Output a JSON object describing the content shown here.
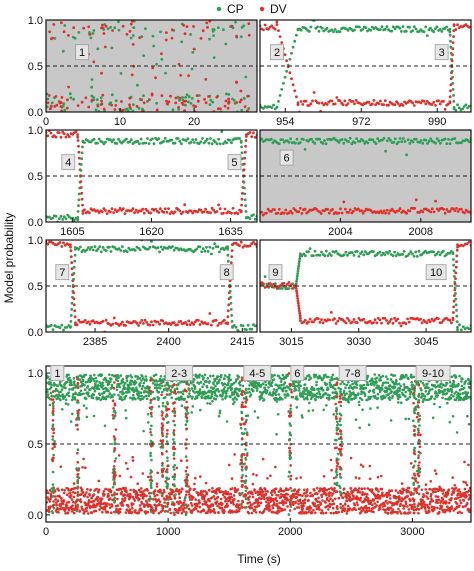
{
  "legend": {
    "position": "top-center",
    "entries": [
      {
        "label": "CP",
        "color": "#2e9e55"
      },
      {
        "label": "DV",
        "color": "#e0302a"
      }
    ]
  },
  "y_axis_label": "Model probability",
  "x_axis_label": "Time (s)",
  "colors": {
    "cp": "#2e9e55",
    "dv": "#e0302a",
    "shade": "#c8c8c8"
  },
  "chart_data": [
    {
      "type": "scatter",
      "panel": "top-left",
      "xlim": [
        0,
        28.5
      ],
      "ylim": [
        0,
        1
      ],
      "x_ticks": [
        0,
        10,
        20
      ],
      "y_ticks": [
        0.0,
        0.5,
        1.0
      ],
      "y_tick_labels": [
        "0.0",
        "0.5",
        "1.0"
      ],
      "reference_line": 0.5,
      "shaded": true,
      "badges": [
        {
          "label": "1",
          "x": 4,
          "y": 0.65
        }
      ],
      "series": [
        {
          "color": "cp",
          "segments": [],
          "noise": {
            "from": 0,
            "to": 27.5,
            "count": 140
          }
        },
        {
          "color": "dv",
          "segments": [],
          "noise": {
            "from": 0,
            "to": 27.5,
            "count": 140
          }
        }
      ]
    },
    {
      "type": "scatter",
      "panel": "top-right",
      "xlim": [
        948,
        998
      ],
      "ylim": [
        0,
        1
      ],
      "x_ticks": [
        954,
        972,
        990
      ],
      "y_ticks": [
        0.0,
        0.5,
        1.0
      ],
      "reference_line": 0.5,
      "shaded": false,
      "badges": [
        {
          "label": "2",
          "x": 950.5,
          "y": 0.65
        },
        {
          "label": "3",
          "x": 989.5,
          "y": 0.65
        }
      ],
      "series": [
        {
          "color": "cp",
          "segments": [
            {
              "from": 948,
              "to": 952,
              "level": 0.05
            },
            {
              "from": 957,
              "to": 993,
              "level": 0.9
            },
            {
              "from": 994,
              "to": 998,
              "level": 0.05
            }
          ]
        },
        {
          "color": "dv",
          "segments": [
            {
              "from": 948,
              "to": 952,
              "level": 0.92
            },
            {
              "from": 957,
              "to": 993,
              "level": 0.1
            },
            {
              "from": 994,
              "to": 998,
              "level": 0.92
            }
          ]
        }
      ]
    },
    {
      "type": "scatter",
      "panel": "middle-left",
      "xlim": [
        1600,
        1640
      ],
      "ylim": [
        0,
        1
      ],
      "x_ticks": [
        1605,
        1620,
        1635
      ],
      "y_ticks": [
        0.0,
        0.5,
        1.0
      ],
      "reference_line": 0.5,
      "shaded": false,
      "badges": [
        {
          "label": "4",
          "x": 1603,
          "y": 0.65
        },
        {
          "label": "5",
          "x": 1634.5,
          "y": 0.65
        }
      ],
      "series": [
        {
          "color": "cp",
          "segments": [
            {
              "from": 1600,
              "to": 1606,
              "level": 0.05
            },
            {
              "from": 1607,
              "to": 1637,
              "level": 0.88
            },
            {
              "from": 1638,
              "to": 1640,
              "level": 0.05
            }
          ]
        },
        {
          "color": "dv",
          "segments": [
            {
              "from": 1600,
              "to": 1606,
              "level": 0.95
            },
            {
              "from": 1607,
              "to": 1637,
              "level": 0.12
            },
            {
              "from": 1638,
              "to": 1640,
              "level": 0.95
            }
          ]
        }
      ]
    },
    {
      "type": "scatter",
      "panel": "middle-right",
      "xlim": [
        2000,
        2010.5
      ],
      "ylim": [
        0,
        1
      ],
      "x_ticks": [
        2004,
        2008
      ],
      "y_ticks": [
        0.0,
        0.5,
        1.0
      ],
      "reference_line": 0.5,
      "shaded": true,
      "badges": [
        {
          "label": "6",
          "x": 2001,
          "y": 0.7
        }
      ],
      "series": [
        {
          "color": "cp",
          "segments": [
            {
              "from": 2000,
              "to": 2010.5,
              "level": 0.88
            }
          ]
        },
        {
          "color": "dv",
          "segments": [
            {
              "from": 2000,
              "to": 2010.5,
              "level": 0.12
            }
          ]
        }
      ]
    },
    {
      "type": "scatter",
      "panel": "lower-left",
      "xlim": [
        2375,
        2418
      ],
      "ylim": [
        0,
        1
      ],
      "x_ticks": [
        2385,
        2400,
        2415
      ],
      "y_ticks": [
        0.0,
        0.5,
        1.0
      ],
      "reference_line": 0.5,
      "shaded": false,
      "badges": [
        {
          "label": "7",
          "x": 2377,
          "y": 0.65
        },
        {
          "label": "8",
          "x": 2410.5,
          "y": 0.65
        }
      ],
      "series": [
        {
          "color": "cp",
          "segments": [
            {
              "from": 2375,
              "to": 2380,
              "level": 0.05
            },
            {
              "from": 2381,
              "to": 2412,
              "level": 0.9
            },
            {
              "from": 2413,
              "to": 2418,
              "level": 0.05
            }
          ]
        },
        {
          "color": "dv",
          "segments": [
            {
              "from": 2375,
              "to": 2380,
              "level": 0.95
            },
            {
              "from": 2381,
              "to": 2412,
              "level": 0.1
            },
            {
              "from": 2413,
              "to": 2418,
              "level": 0.95
            }
          ]
        }
      ]
    },
    {
      "type": "scatter",
      "panel": "lower-right",
      "xlim": [
        3008,
        3055
      ],
      "ylim": [
        0,
        1
      ],
      "x_ticks": [
        3015,
        3030,
        3045
      ],
      "y_ticks": [
        0.0,
        0.5,
        1.0
      ],
      "reference_line": 0.5,
      "shaded": false,
      "badges": [
        {
          "label": "9",
          "x": 3010,
          "y": 0.65
        },
        {
          "label": "10",
          "x": 3045,
          "y": 0.65
        }
      ],
      "series": [
        {
          "color": "cp",
          "segments": [
            {
              "from": 3008,
              "to": 3016,
              "level": 0.5
            },
            {
              "from": 3017,
              "to": 3051,
              "level": 0.85
            },
            {
              "from": 3052,
              "to": 3055,
              "level": 0.05
            }
          ]
        },
        {
          "color": "dv",
          "segments": [
            {
              "from": 3008,
              "to": 3016,
              "level": 0.5
            },
            {
              "from": 3017,
              "to": 3051,
              "level": 0.12
            },
            {
              "from": 3052,
              "to": 3055,
              "level": 0.95
            }
          ]
        }
      ]
    },
    {
      "type": "scatter",
      "panel": "bottom",
      "xlim": [
        0,
        3480
      ],
      "ylim": [
        -0.05,
        1.05
      ],
      "x_ticks": [
        0,
        1000,
        2000,
        3000
      ],
      "y_ticks": [
        0.0,
        0.5,
        1.0
      ],
      "y_tick_labels": [
        "0.0",
        "0.5",
        "1.0"
      ],
      "reference_line": 0.5,
      "shaded": false,
      "badges": [
        {
          "label": "1",
          "x": 40,
          "y": 1.0
        },
        {
          "label": "2-3",
          "x": 980,
          "y": 1.0
        },
        {
          "label": "4-5",
          "x": 1620,
          "y": 1.0
        },
        {
          "label": "6",
          "x": 2005,
          "y": 1.0
        },
        {
          "label": "7-8",
          "x": 2400,
          "y": 1.0
        },
        {
          "label": "9-10",
          "x": 3030,
          "y": 1.0
        }
      ],
      "switch_times": [
        60,
        260,
        560,
        860,
        953,
        993,
        1050,
        1150,
        1606,
        1637,
        2000,
        2380,
        2413,
        3016,
        3052
      ],
      "series": [
        {
          "color": "cp",
          "level": 0.9,
          "spread": 0.09
        },
        {
          "color": "dv",
          "level": 0.1,
          "spread": 0.09
        }
      ]
    }
  ]
}
